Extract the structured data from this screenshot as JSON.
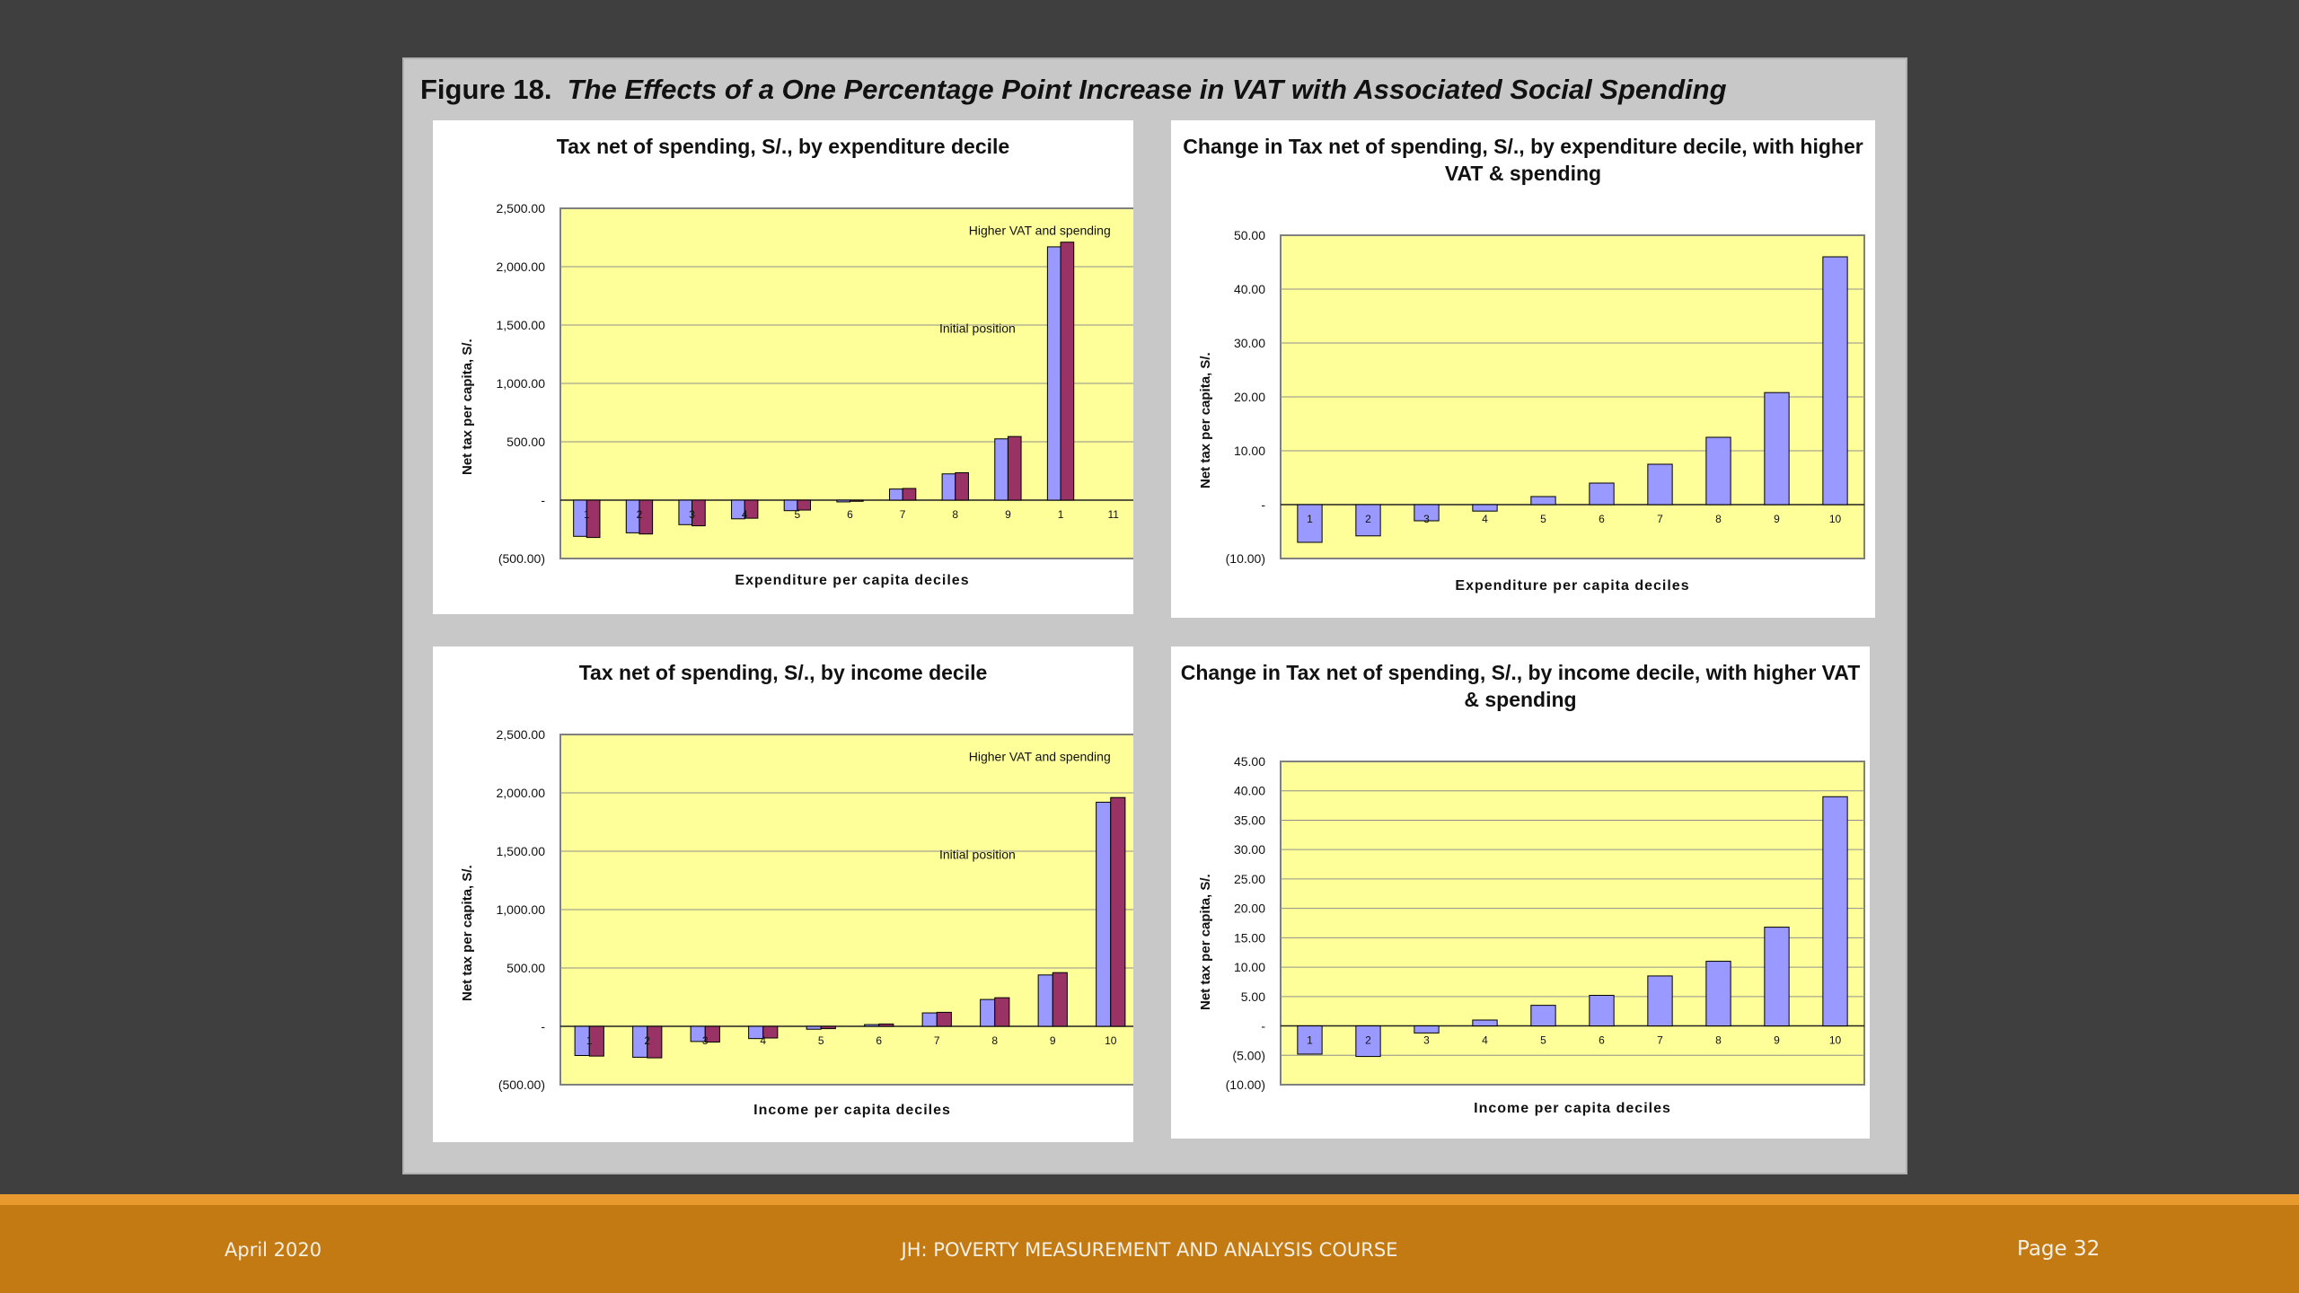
{
  "figure": {
    "label": "Figure 18.",
    "title": "The Effects of a One Percentage Point Increase in VAT with Associated Social Spending"
  },
  "colors": {
    "plot_bg": "#ffff99",
    "series_initial": "#9999ff",
    "series_higher": "#993366",
    "footer_bg": "#c47a12",
    "footer_stripe": "#e89a2e",
    "slide_bg": "#3f3f3f"
  },
  "chart_data": [
    {
      "type": "bar",
      "title": "Tax net of spending, S/., by expenditure decile",
      "xlabel": "Expenditure per capita deciles",
      "ylabel": "Net tax per capita, S/.",
      "ylim": [
        -500,
        2500
      ],
      "yticks": [
        "(500.00)",
        "-",
        "500.00",
        "1,000.00",
        "1,500.00",
        "2,000.00",
        "2,500.00"
      ],
      "categories": [
        "1",
        "2",
        "3",
        "4",
        "5",
        "6",
        "7",
        "8",
        "9",
        "1",
        "11"
      ],
      "series": [
        {
          "name": "Initial position",
          "values": [
            -310,
            -280,
            -210,
            -160,
            -90,
            -15,
            95,
            225,
            525,
            2170,
            null
          ]
        },
        {
          "name": "Higher VAT and spending",
          "values": [
            -320,
            -290,
            -220,
            -155,
            -85,
            -10,
            100,
            235,
            545,
            2210,
            null
          ]
        }
      ],
      "annotations": [
        "Higher VAT and spending",
        "Initial position"
      ],
      "grid": true
    },
    {
      "type": "bar",
      "title": "Change in Tax net of spending, S/., by expenditure decile, with higher VAT & spending",
      "xlabel": "Expenditure per capita deciles",
      "ylabel": "Net tax per capita, S/.",
      "ylim": [
        -10,
        50
      ],
      "yticks": [
        "(10.00)",
        "-",
        "10.00",
        "20.00",
        "30.00",
        "40.00",
        "50.00"
      ],
      "categories": [
        "1",
        "2",
        "3",
        "4",
        "5",
        "6",
        "7",
        "8",
        "9",
        "10"
      ],
      "series": [
        {
          "values": [
            -7,
            -5.8,
            -3,
            -1.2,
            1.5,
            4,
            7.5,
            12.5,
            20.8,
            46
          ]
        }
      ],
      "grid": true
    },
    {
      "type": "bar",
      "title": "Tax net of spending, S/., by income decile",
      "xlabel": "Income per capita deciles",
      "ylabel": "Net tax per capita, S/.",
      "ylim": [
        -500,
        2500
      ],
      "yticks": [
        "(500.00)",
        "-",
        "500.00",
        "1,000.00",
        "1,500.00",
        "2,000.00",
        "2,500.00"
      ],
      "categories": [
        "1",
        "2",
        "3",
        "4",
        "5",
        "6",
        "7",
        "8",
        "9",
        "10"
      ],
      "series": [
        {
          "name": "Initial position",
          "values": [
            -250,
            -265,
            -130,
            -105,
            -25,
            15,
            115,
            230,
            440,
            1920
          ]
        },
        {
          "name": "Higher VAT and spending",
          "values": [
            -255,
            -270,
            -135,
            -100,
            -20,
            20,
            120,
            245,
            460,
            1960
          ]
        }
      ],
      "annotations": [
        "Higher VAT and spending",
        "Initial position"
      ],
      "grid": true
    },
    {
      "type": "bar",
      "title": "Change in Tax net of spending, S/., by income decile, with higher VAT & spending",
      "xlabel": "Income per capita deciles",
      "ylabel": "Net tax per capita, S/.",
      "ylim": [
        -10,
        45
      ],
      "yticks": [
        "(10.00)",
        "(5.00)",
        "-",
        "5.00",
        "10.00",
        "15.00",
        "20.00",
        "25.00",
        "30.00",
        "35.00",
        "40.00",
        "45.00"
      ],
      "categories": [
        "1",
        "2",
        "3",
        "4",
        "5",
        "6",
        "7",
        "8",
        "9",
        "10"
      ],
      "series": [
        {
          "values": [
            -4.8,
            -5.2,
            -1.2,
            1,
            3.5,
            5.2,
            8.5,
            11,
            16.8,
            39
          ]
        }
      ],
      "grid": true
    }
  ],
  "footer": {
    "date": "April 2020",
    "course": "JH: POVERTY MEASUREMENT AND ANALYSIS COURSE",
    "page": "Page 32"
  }
}
